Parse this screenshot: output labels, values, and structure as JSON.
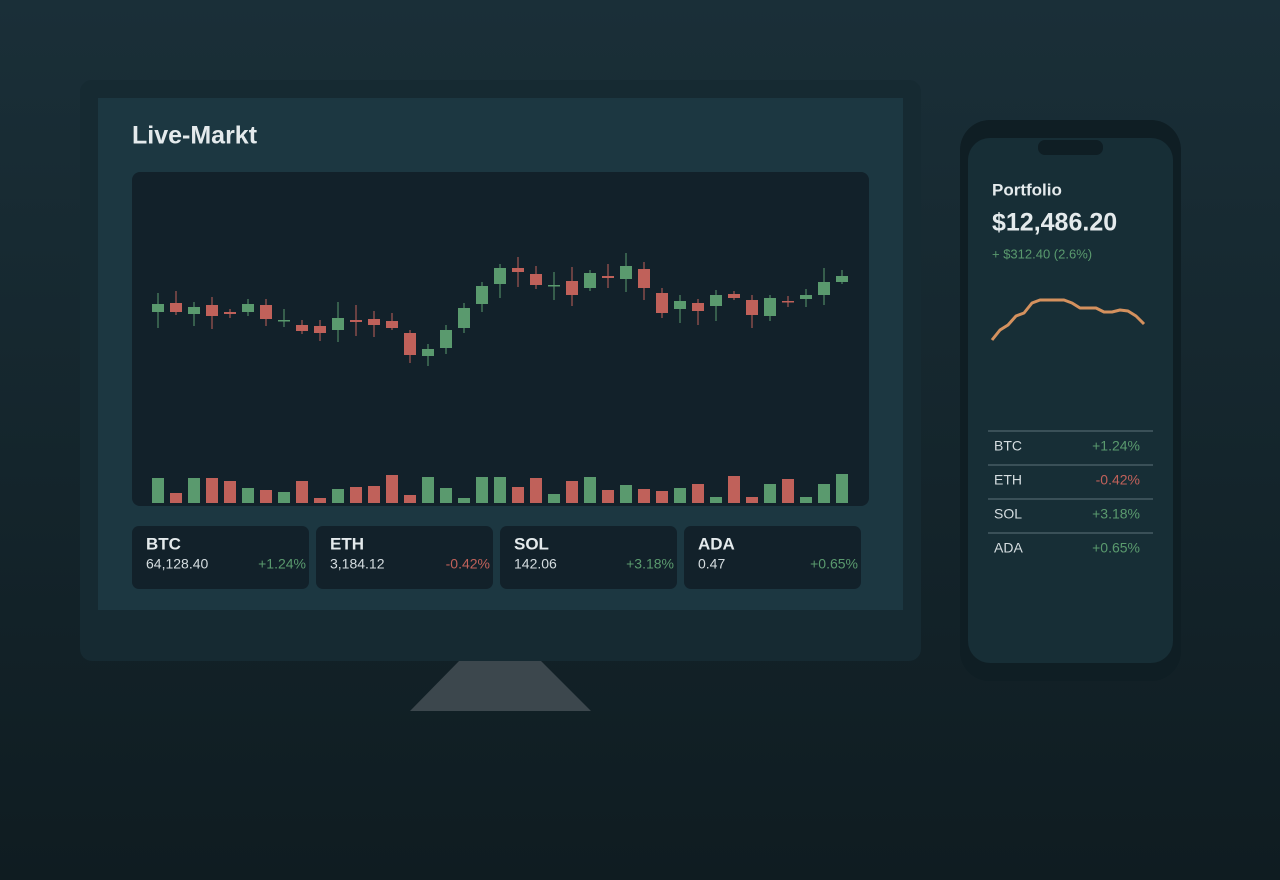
{
  "screen_title": "Live-Markt",
  "chart_data": [
    {
      "type": "candlestick",
      "up_color": "#5a9a6e",
      "down_color": "#c0615a",
      "ylim": [
        20,
        170
      ],
      "volume_ylim": [
        0,
        30
      ],
      "open": [
        88,
        97,
        86,
        95,
        88,
        88,
        95,
        79,
        75,
        74,
        70,
        80,
        81,
        79,
        67,
        44,
        52,
        72,
        96,
        116,
        132,
        126,
        114,
        119,
        112,
        124,
        121,
        131,
        107,
        91,
        97,
        94,
        106,
        100,
        84,
        99,
        101,
        105,
        118
      ],
      "close": [
        96,
        88,
        93,
        84,
        86,
        96,
        81,
        80,
        69,
        67,
        82,
        78,
        75,
        72,
        45,
        51,
        70,
        92,
        114,
        132,
        128,
        115,
        115,
        105,
        127,
        122,
        134,
        112,
        87,
        99,
        89,
        105,
        102,
        85,
        102,
        98,
        105,
        118,
        124
      ],
      "high": [
        107,
        109,
        98,
        103,
        91,
        101,
        101,
        91,
        80,
        80,
        98,
        95,
        89,
        87,
        70,
        56,
        75,
        97,
        118,
        136,
        143,
        134,
        128,
        133,
        130,
        136,
        147,
        138,
        112,
        105,
        101,
        110,
        109,
        105,
        105,
        104,
        111,
        132,
        130
      ],
      "low": [
        72,
        85,
        74,
        71,
        82,
        84,
        74,
        73,
        66,
        59,
        58,
        64,
        63,
        70,
        37,
        34,
        46,
        67,
        88,
        102,
        113,
        111,
        100,
        94,
        109,
        112,
        108,
        100,
        82,
        77,
        75,
        79,
        100,
        72,
        79,
        93,
        93,
        95,
        116
      ],
      "volume": [
        25,
        10,
        25,
        25,
        22,
        15,
        13,
        11,
        22,
        5,
        14,
        16,
        17,
        28,
        8,
        26,
        15,
        5,
        26,
        26,
        16,
        25,
        9,
        22,
        26,
        13,
        18,
        14,
        12,
        15,
        19,
        6,
        27,
        6,
        19,
        24,
        6,
        19,
        29
      ]
    },
    {
      "type": "line",
      "color": "#d4915e",
      "ylim": [
        0,
        80
      ],
      "values": [
        20,
        30,
        35,
        44,
        47,
        57,
        60,
        60,
        60,
        60,
        57,
        52,
        52,
        52,
        48,
        48,
        50,
        49,
        44,
        36
      ]
    }
  ],
  "markets": [
    {
      "symbol": "BTC",
      "price": "64,128.40",
      "change": "+1.24%"
    },
    {
      "symbol": "ETH",
      "price": "3,184.12",
      "change": "-0.42%"
    },
    {
      "symbol": "SOL",
      "price": "142.06",
      "change": "+3.18%"
    },
    {
      "symbol": "ADA",
      "price": "0.47",
      "change": "+0.65%"
    }
  ],
  "portfolio": {
    "title": "Portfolio",
    "value": "$12,486.20",
    "change": "+ $312.40 (2.6%)"
  },
  "watchlist": [
    {
      "symbol": "BTC",
      "change": "+1.24%"
    },
    {
      "symbol": "ETH",
      "change": "-0.42%"
    },
    {
      "symbol": "SOL",
      "change": "+3.18%"
    },
    {
      "symbol": "ADA",
      "change": "+0.65%"
    }
  ]
}
